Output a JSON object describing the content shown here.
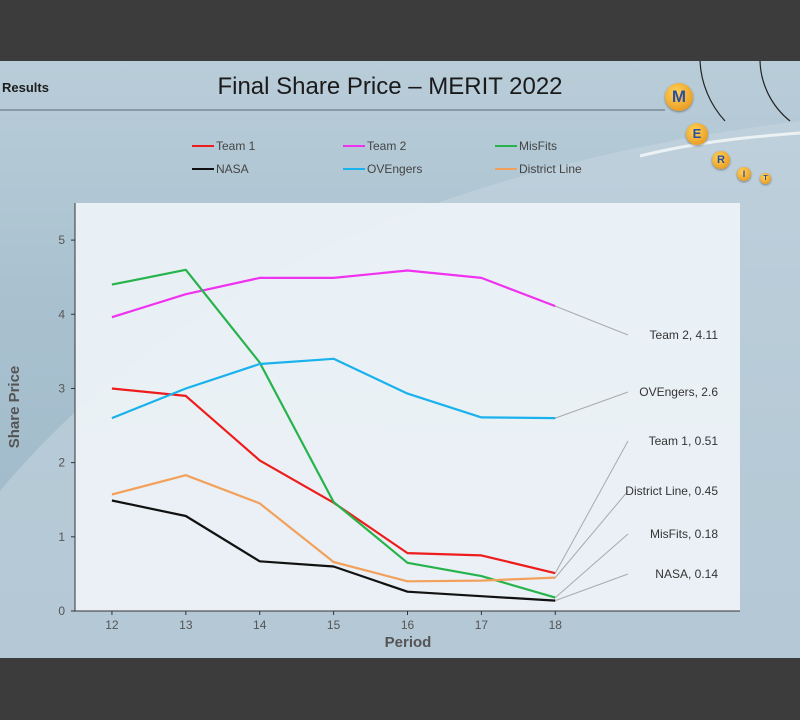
{
  "slide": {
    "section_label": "Results",
    "title": "Final Share Price – MERIT 2022",
    "logo_letters": [
      "M",
      "E",
      "R",
      "I",
      "T"
    ]
  },
  "colors": {
    "Team 1": "#ee1c1c",
    "Team 2": "#f032f0",
    "MisFits": "#27b34b",
    "NASA": "#111111",
    "OVEngers": "#1ab2ec",
    "District Line": "#f2a15d"
  },
  "chart_data": {
    "type": "line",
    "title": "",
    "xlabel": "Period",
    "ylabel": "Share Price",
    "x": [
      12,
      13,
      14,
      15,
      16,
      17,
      18
    ],
    "xlim": [
      11.5,
      20.5
    ],
    "ylim": [
      0,
      5.5
    ],
    "yticks": [
      0,
      1,
      2,
      3,
      4,
      5
    ],
    "legend_placement": "top",
    "series": [
      {
        "name": "Team 1",
        "values": [
          3.0,
          2.9,
          2.03,
          1.46,
          0.78,
          0.75,
          0.51
        ]
      },
      {
        "name": "Team 2",
        "values": [
          3.96,
          4.27,
          4.49,
          4.49,
          4.59,
          4.49,
          4.11
        ]
      },
      {
        "name": "MisFits",
        "values": [
          4.4,
          4.6,
          3.35,
          1.47,
          0.65,
          0.47,
          0.18
        ]
      },
      {
        "name": "NASA",
        "values": [
          1.49,
          1.28,
          0.67,
          0.6,
          0.26,
          0.2,
          0.14
        ]
      },
      {
        "name": "OVEngers",
        "values": [
          2.6,
          3.0,
          3.33,
          3.4,
          2.93,
          2.61,
          2.6
        ]
      },
      {
        "name": "District Line",
        "values": [
          1.57,
          1.83,
          1.45,
          0.66,
          0.4,
          0.41,
          0.45
        ]
      }
    ],
    "annotations": [
      {
        "series": "Team 2",
        "text": "Team 2, 4.11"
      },
      {
        "series": "OVEngers",
        "text": "OVEngers, 2.6"
      },
      {
        "series": "Team 1",
        "text": "Team 1, 0.51"
      },
      {
        "series": "District Line",
        "text": "District Line, 0.45"
      },
      {
        "series": "MisFits",
        "text": "MisFits, 0.18"
      },
      {
        "series": "NASA",
        "text": "NASA, 0.14"
      }
    ]
  }
}
